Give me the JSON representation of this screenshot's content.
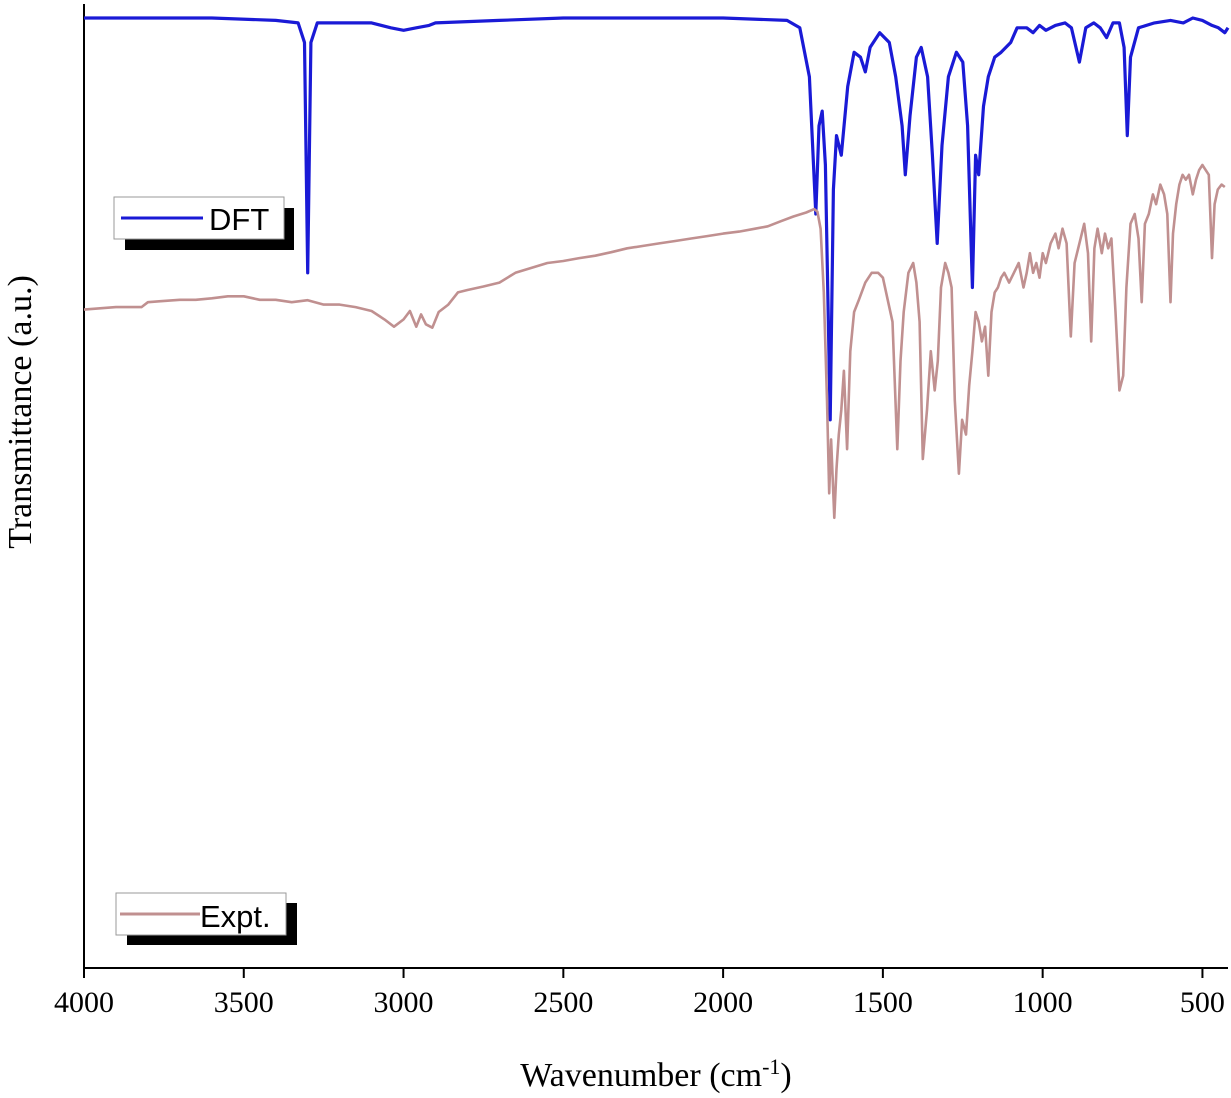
{
  "chart_data": {
    "type": "line",
    "xlabel": "Wavenumber (cm",
    "xlabel_sup": "-1",
    "xlabel_suffix": ")",
    "ylabel": "Transmittance (a.u.)",
    "xlim": [
      4000,
      420
    ],
    "x_reversed": true,
    "xticks": [
      4000,
      3500,
      3000,
      2500,
      2000,
      1500,
      1000,
      500
    ],
    "yticks_shown": false,
    "grid": false,
    "legend_placement": "in-panel, left",
    "series": [
      {
        "name": "DFT",
        "color": "#1a1ad6",
        "baseline": 0.0,
        "points": [
          [
            4000,
            0.0
          ],
          [
            3800,
            0.0
          ],
          [
            3600,
            0.0
          ],
          [
            3400,
            0.005
          ],
          [
            3330,
            0.01
          ],
          [
            3310,
            0.05
          ],
          [
            3300,
            0.52
          ],
          [
            3290,
            0.05
          ],
          [
            3270,
            0.01
          ],
          [
            3100,
            0.01
          ],
          [
            3040,
            0.02
          ],
          [
            3000,
            0.025
          ],
          [
            2960,
            0.02
          ],
          [
            2920,
            0.015
          ],
          [
            2900,
            0.01
          ],
          [
            2700,
            0.005
          ],
          [
            2500,
            0.0
          ],
          [
            2000,
            0.0
          ],
          [
            1800,
            0.005
          ],
          [
            1760,
            0.02
          ],
          [
            1730,
            0.12
          ],
          [
            1710,
            0.4
          ],
          [
            1700,
            0.22
          ],
          [
            1690,
            0.19
          ],
          [
            1680,
            0.3
          ],
          [
            1665,
            0.82
          ],
          [
            1655,
            0.35
          ],
          [
            1645,
            0.24
          ],
          [
            1630,
            0.28
          ],
          [
            1610,
            0.14
          ],
          [
            1590,
            0.07
          ],
          [
            1570,
            0.08
          ],
          [
            1555,
            0.11
          ],
          [
            1540,
            0.06
          ],
          [
            1510,
            0.03
          ],
          [
            1480,
            0.05
          ],
          [
            1460,
            0.12
          ],
          [
            1440,
            0.22
          ],
          [
            1430,
            0.32
          ],
          [
            1415,
            0.2
          ],
          [
            1395,
            0.08
          ],
          [
            1380,
            0.06
          ],
          [
            1360,
            0.12
          ],
          [
            1345,
            0.28
          ],
          [
            1330,
            0.46
          ],
          [
            1315,
            0.26
          ],
          [
            1295,
            0.12
          ],
          [
            1270,
            0.07
          ],
          [
            1250,
            0.09
          ],
          [
            1235,
            0.22
          ],
          [
            1220,
            0.55
          ],
          [
            1210,
            0.28
          ],
          [
            1200,
            0.32
          ],
          [
            1185,
            0.18
          ],
          [
            1170,
            0.12
          ],
          [
            1150,
            0.08
          ],
          [
            1130,
            0.07
          ],
          [
            1100,
            0.05
          ],
          [
            1080,
            0.02
          ],
          [
            1050,
            0.02
          ],
          [
            1030,
            0.03
          ],
          [
            1010,
            0.015
          ],
          [
            990,
            0.025
          ],
          [
            960,
            0.015
          ],
          [
            930,
            0.01
          ],
          [
            910,
            0.02
          ],
          [
            885,
            0.09
          ],
          [
            865,
            0.02
          ],
          [
            840,
            0.01
          ],
          [
            820,
            0.02
          ],
          [
            800,
            0.04
          ],
          [
            780,
            0.01
          ],
          [
            760,
            0.01
          ],
          [
            745,
            0.06
          ],
          [
            735,
            0.24
          ],
          [
            725,
            0.08
          ],
          [
            700,
            0.02
          ],
          [
            650,
            0.01
          ],
          [
            600,
            0.005
          ],
          [
            560,
            0.01
          ],
          [
            530,
            0.0
          ],
          [
            500,
            0.005
          ],
          [
            470,
            0.015
          ],
          [
            450,
            0.02
          ],
          [
            430,
            0.03
          ],
          [
            420,
            0.02
          ]
        ]
      },
      {
        "name": "Expt.",
        "color": "#c09090",
        "baseline": 0.58,
        "points": [
          [
            4000,
            0.595
          ],
          [
            3900,
            0.59
          ],
          [
            3820,
            0.59
          ],
          [
            3800,
            0.58
          ],
          [
            3760,
            0.578
          ],
          [
            3700,
            0.575
          ],
          [
            3650,
            0.575
          ],
          [
            3600,
            0.572
          ],
          [
            3550,
            0.568
          ],
          [
            3500,
            0.568
          ],
          [
            3450,
            0.575
          ],
          [
            3400,
            0.575
          ],
          [
            3350,
            0.58
          ],
          [
            3300,
            0.576
          ],
          [
            3250,
            0.585
          ],
          [
            3200,
            0.585
          ],
          [
            3150,
            0.59
          ],
          [
            3100,
            0.598
          ],
          [
            3060,
            0.615
          ],
          [
            3030,
            0.63
          ],
          [
            3000,
            0.615
          ],
          [
            2980,
            0.598
          ],
          [
            2960,
            0.63
          ],
          [
            2945,
            0.605
          ],
          [
            2930,
            0.625
          ],
          [
            2910,
            0.632
          ],
          [
            2890,
            0.6
          ],
          [
            2860,
            0.585
          ],
          [
            2830,
            0.56
          ],
          [
            2800,
            0.555
          ],
          [
            2750,
            0.548
          ],
          [
            2700,
            0.54
          ],
          [
            2650,
            0.52
          ],
          [
            2600,
            0.51
          ],
          [
            2550,
            0.5
          ],
          [
            2500,
            0.496
          ],
          [
            2450,
            0.49
          ],
          [
            2400,
            0.485
          ],
          [
            2350,
            0.478
          ],
          [
            2300,
            0.47
          ],
          [
            2250,
            0.465
          ],
          [
            2200,
            0.46
          ],
          [
            2150,
            0.455
          ],
          [
            2100,
            0.45
          ],
          [
            2050,
            0.445
          ],
          [
            2000,
            0.44
          ],
          [
            1950,
            0.436
          ],
          [
            1900,
            0.43
          ],
          [
            1860,
            0.425
          ],
          [
            1820,
            0.415
          ],
          [
            1780,
            0.405
          ],
          [
            1740,
            0.397
          ],
          [
            1715,
            0.39
          ],
          [
            1705,
            0.395
          ],
          [
            1695,
            0.43
          ],
          [
            1685,
            0.56
          ],
          [
            1675,
            0.78
          ],
          [
            1668,
            0.97
          ],
          [
            1662,
            0.86
          ],
          [
            1652,
            1.02
          ],
          [
            1645,
            0.92
          ],
          [
            1638,
            0.85
          ],
          [
            1630,
            0.8
          ],
          [
            1622,
            0.72
          ],
          [
            1612,
            0.88
          ],
          [
            1602,
            0.68
          ],
          [
            1590,
            0.6
          ],
          [
            1575,
            0.575
          ],
          [
            1555,
            0.54
          ],
          [
            1535,
            0.52
          ],
          [
            1515,
            0.52
          ],
          [
            1500,
            0.53
          ],
          [
            1485,
            0.575
          ],
          [
            1470,
            0.62
          ],
          [
            1455,
            0.88
          ],
          [
            1445,
            0.7
          ],
          [
            1435,
            0.6
          ],
          [
            1420,
            0.52
          ],
          [
            1405,
            0.5
          ],
          [
            1395,
            0.54
          ],
          [
            1385,
            0.62
          ],
          [
            1375,
            0.9
          ],
          [
            1362,
            0.8
          ],
          [
            1350,
            0.68
          ],
          [
            1338,
            0.76
          ],
          [
            1328,
            0.7
          ],
          [
            1318,
            0.55
          ],
          [
            1305,
            0.5
          ],
          [
            1295,
            0.52
          ],
          [
            1285,
            0.55
          ],
          [
            1275,
            0.78
          ],
          [
            1262,
            0.93
          ],
          [
            1252,
            0.82
          ],
          [
            1240,
            0.85
          ],
          [
            1230,
            0.75
          ],
          [
            1220,
            0.68
          ],
          [
            1210,
            0.6
          ],
          [
            1200,
            0.62
          ],
          [
            1190,
            0.66
          ],
          [
            1180,
            0.63
          ],
          [
            1170,
            0.73
          ],
          [
            1160,
            0.6
          ],
          [
            1150,
            0.56
          ],
          [
            1140,
            0.55
          ],
          [
            1130,
            0.53
          ],
          [
            1120,
            0.52
          ],
          [
            1105,
            0.54
          ],
          [
            1090,
            0.52
          ],
          [
            1075,
            0.5
          ],
          [
            1060,
            0.55
          ],
          [
            1050,
            0.52
          ],
          [
            1040,
            0.48
          ],
          [
            1030,
            0.52
          ],
          [
            1020,
            0.5
          ],
          [
            1010,
            0.53
          ],
          [
            1000,
            0.48
          ],
          [
            990,
            0.5
          ],
          [
            975,
            0.46
          ],
          [
            960,
            0.44
          ],
          [
            950,
            0.47
          ],
          [
            938,
            0.43
          ],
          [
            925,
            0.46
          ],
          [
            912,
            0.65
          ],
          [
            900,
            0.5
          ],
          [
            885,
            0.46
          ],
          [
            870,
            0.42
          ],
          [
            858,
            0.48
          ],
          [
            848,
            0.66
          ],
          [
            838,
            0.47
          ],
          [
            828,
            0.43
          ],
          [
            815,
            0.48
          ],
          [
            805,
            0.44
          ],
          [
            795,
            0.47
          ],
          [
            785,
            0.45
          ],
          [
            772,
            0.6
          ],
          [
            760,
            0.76
          ],
          [
            748,
            0.73
          ],
          [
            738,
            0.55
          ],
          [
            725,
            0.42
          ],
          [
            712,
            0.4
          ],
          [
            700,
            0.45
          ],
          [
            690,
            0.58
          ],
          [
            680,
            0.42
          ],
          [
            668,
            0.4
          ],
          [
            655,
            0.36
          ],
          [
            645,
            0.38
          ],
          [
            632,
            0.34
          ],
          [
            620,
            0.36
          ],
          [
            610,
            0.4
          ],
          [
            600,
            0.58
          ],
          [
            592,
            0.44
          ],
          [
            582,
            0.38
          ],
          [
            572,
            0.34
          ],
          [
            562,
            0.32
          ],
          [
            552,
            0.33
          ],
          [
            542,
            0.32
          ],
          [
            530,
            0.36
          ],
          [
            520,
            0.33
          ],
          [
            510,
            0.31
          ],
          [
            500,
            0.3
          ],
          [
            490,
            0.31
          ],
          [
            480,
            0.32
          ],
          [
            470,
            0.49
          ],
          [
            462,
            0.38
          ],
          [
            452,
            0.35
          ],
          [
            440,
            0.34
          ],
          [
            430,
            0.345
          ]
        ]
      }
    ]
  }
}
